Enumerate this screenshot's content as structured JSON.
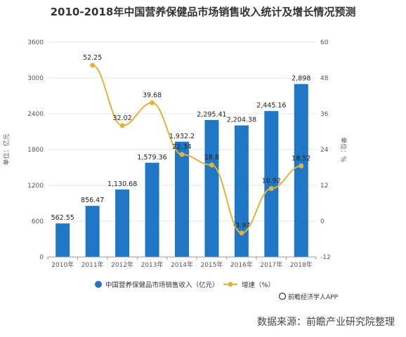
{
  "header": {
    "title": "2010-2018年中国营养保健品市场销售收入统计及增长情况预测"
  },
  "footer": {
    "source": "数据来源：前瞻产业研究院整理",
    "credit": "前瞻经济学人APP"
  },
  "colors": {
    "bar": "#1f77c6",
    "line": "#e3b335",
    "grid": "#e6e6e6",
    "axis": "#999999"
  },
  "chart_data": {
    "type": "bar",
    "title": "2010-2018年中国营养保健品市场销售收入统计及增长情况预测",
    "categories": [
      "2010年",
      "2011年",
      "2012年",
      "2013年",
      "2014年",
      "2015年",
      "2016年",
      "2017年",
      "2018年"
    ],
    "series": [
      {
        "name": "中国营养保健品市场销售收入（亿元）",
        "type": "bar",
        "axis": "left",
        "values": [
          562.55,
          856.47,
          1130.68,
          1579.36,
          1932.2,
          2295.41,
          2204.38,
          2445.16,
          2898
        ],
        "labels": [
          "562.55",
          "856.47",
          "1,130.68",
          "1,579.36",
          "1,932.2",
          "2,295.41",
          "2,204.38",
          "2,445.16",
          "2,898"
        ]
      },
      {
        "name": "增速（%）",
        "type": "line",
        "axis": "right",
        "values": [
          null,
          52.25,
          32.02,
          39.68,
          22.34,
          18.8,
          -3.97,
          10.92,
          18.52
        ],
        "labels": [
          "",
          "52.25",
          "32.02",
          "39.68",
          "22.34",
          "18.8",
          "-3.97",
          "10.92",
          "18.52"
        ]
      }
    ],
    "ylabel_left": "单位：亿元",
    "ylabel_right": "单位：%",
    "ylim_left": [
      0,
      3600
    ],
    "yticks_left": [
      "0",
      "600",
      "1200",
      "1800",
      "2400",
      "3000",
      "3600"
    ],
    "ylim_right": [
      -12,
      60
    ],
    "yticks_right": [
      "-12",
      "0",
      "12",
      "24",
      "36",
      "48",
      "60"
    ],
    "grid": true,
    "legend_position": "bottom"
  }
}
